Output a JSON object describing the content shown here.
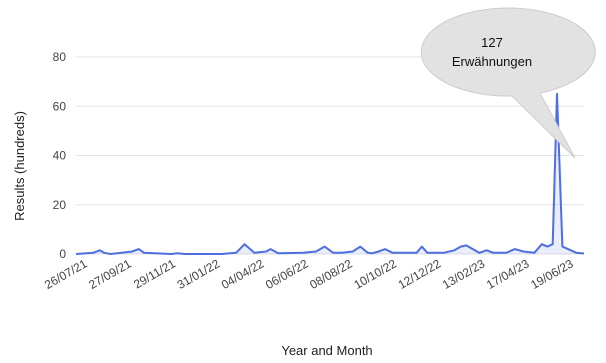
{
  "chart_data": {
    "type": "line",
    "title": "",
    "xlabel": "Year and Month",
    "ylabel": "Results (hundreds)",
    "ylim": [
      0,
      90
    ],
    "yticks": [
      0,
      20,
      40,
      60,
      80
    ],
    "xticks": [
      "26/07/21",
      "27/09/21",
      "29/11/21",
      "31/01/22",
      "04/04/22",
      "06/06/22",
      "08/08/22",
      "10/10/22",
      "12/12/22",
      "13/02/23",
      "17/04/23",
      "19/06/23"
    ],
    "grid": true,
    "series": [
      {
        "color": "#4f6fe0",
        "x": [
          0,
          1.6,
          2.2,
          2.6,
          3.2,
          5.2,
          5.8,
          6.3,
          8.8,
          9.4,
          10.0,
          13.5,
          14.8,
          15.6,
          16.5,
          17.6,
          18.0,
          18.7,
          21.0,
          22.2,
          23.0,
          23.8,
          24.6,
          25.6,
          26.3,
          27.0,
          27.4,
          28.0,
          28.6,
          29.3,
          31.5,
          32.0,
          32.5,
          34.0,
          35.0,
          35.6,
          36.1,
          37.3,
          38.0,
          38.6,
          39.8,
          40.6,
          41.4,
          42.4,
          43.1,
          43.6,
          44.1,
          44.5,
          45.0,
          46.3,
          47.0
        ],
        "y": [
          0,
          0.5,
          1.5,
          0.5,
          0,
          1,
          2,
          0.5,
          0,
          0.3,
          0,
          0,
          0.5,
          4,
          0.5,
          1,
          2,
          0.3,
          0.5,
          1,
          3,
          0.5,
          0.5,
          1,
          3,
          0.5,
          0.3,
          1,
          2,
          0.5,
          0.5,
          3,
          0.5,
          0.5,
          1.5,
          3,
          3.5,
          0.5,
          1.5,
          0.5,
          0.5,
          2,
          1,
          0.5,
          4,
          3,
          4,
          65,
          3,
          0.5,
          0.2
        ]
      }
    ]
  },
  "annotation": {
    "line1": "127",
    "line2": "Erwähnungen"
  },
  "colors": {
    "grid": "#e3e3e3",
    "line": "#4f6fe0",
    "callout_fill": "#e2e2e2",
    "callout_stroke": "#cccccc"
  }
}
